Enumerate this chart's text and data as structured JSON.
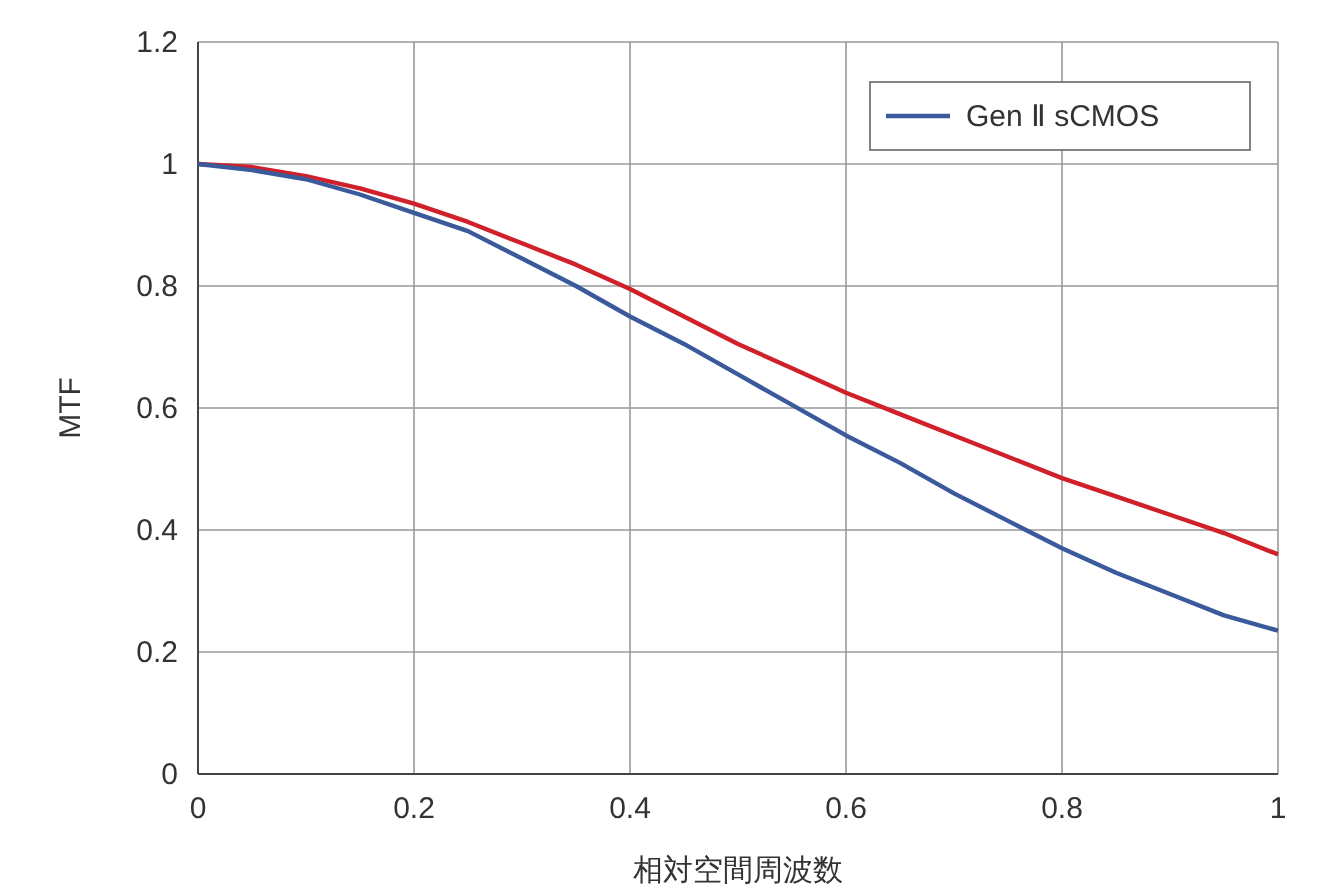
{
  "chart_data": {
    "type": "line",
    "xlabel": "相対空間周波数",
    "ylabel": "MTF",
    "x": [
      0,
      0.05,
      0.1,
      0.15,
      0.2,
      0.25,
      0.3,
      0.35,
      0.4,
      0.45,
      0.5,
      0.55,
      0.6,
      0.65,
      0.7,
      0.75,
      0.8,
      0.85,
      0.9,
      0.95,
      1
    ],
    "series": [
      {
        "color": "#d0202a",
        "values": [
          1,
          0.995,
          0.98,
          0.96,
          0.935,
          0.905,
          0.87,
          0.835,
          0.795,
          0.75,
          0.705,
          0.665,
          0.625,
          0.59,
          0.555,
          0.52,
          0.485,
          0.455,
          0.425,
          0.395,
          0.36
        ]
      },
      {
        "name": "Gen Ⅱ sCMOS",
        "color": "#3a5a9c",
        "values": [
          1,
          0.99,
          0.975,
          0.95,
          0.92,
          0.89,
          0.845,
          0.8,
          0.75,
          0.705,
          0.655,
          0.605,
          0.555,
          0.51,
          0.46,
          0.415,
          0.37,
          0.33,
          0.295,
          0.26,
          0.235
        ]
      }
    ],
    "xlim": [
      0,
      1
    ],
    "xticks": [
      0,
      0.2,
      0.4,
      0.6,
      0.8,
      1
    ],
    "ylim": [
      0,
      1.2
    ],
    "yticks": [
      0,
      0.2,
      0.4,
      0.6,
      0.8,
      1,
      1.2
    ],
    "grid": true,
    "legend": "top right",
    "marker": "none",
    "line_style": "solid"
  }
}
